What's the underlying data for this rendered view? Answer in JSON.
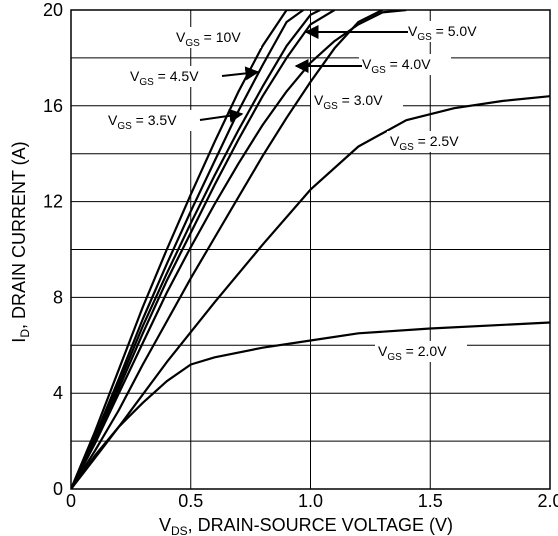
{
  "chart_data": {
    "type": "line",
    "xlabel_main": "V",
    "xlabel_sub": "DS",
    "xlabel_rest": ", DRAIN-SOURCE VOLTAGE (V)",
    "ylabel_main": "I",
    "ylabel_sub": "D",
    "ylabel_rest": ", DRAIN CURRENT (A)",
    "xlim": [
      0,
      2.0
    ],
    "ylim": [
      0,
      20
    ],
    "x_ticks": [
      "0",
      "0.5",
      "1.0",
      "1.5",
      "2.0"
    ],
    "y_ticks": [
      "0",
      "4",
      "8",
      "12",
      "16",
      "20"
    ],
    "grid": true,
    "series": [
      {
        "label_main": "V",
        "label_sub": "GS",
        "label_rest": " = 10V",
        "x": [
          0,
          0.1,
          0.2,
          0.3,
          0.4,
          0.5,
          0.6,
          0.7,
          0.8,
          0.9,
          0.95
        ],
        "y": [
          0,
          2.4,
          5.0,
          7.6,
          10.0,
          12.3,
          14.5,
          16.6,
          18.5,
          20.0,
          20.0
        ]
      },
      {
        "label_main": "V",
        "label_sub": "GS",
        "label_rest": " = 5.0V",
        "x": [
          0,
          0.1,
          0.2,
          0.3,
          0.4,
          0.5,
          0.6,
          0.7,
          0.8,
          0.9,
          0.97
        ],
        "y": [
          0,
          2.2,
          4.6,
          7.1,
          9.4,
          11.6,
          13.7,
          15.8,
          17.7,
          19.5,
          20.0
        ]
      },
      {
        "label_main": "V",
        "label_sub": "GS",
        "label_rest": " = 4.5V",
        "x": [
          0,
          0.1,
          0.2,
          0.3,
          0.4,
          0.5,
          0.6,
          0.7,
          0.8,
          0.9,
          1.0,
          1.04
        ],
        "y": [
          0,
          2.1,
          4.4,
          6.8,
          9.0,
          11.1,
          13.1,
          15.0,
          16.8,
          18.5,
          19.8,
          20.0
        ]
      },
      {
        "label_main": "V",
        "label_sub": "GS",
        "label_rest": " = 4.0V",
        "x": [
          0,
          0.1,
          0.2,
          0.3,
          0.4,
          0.5,
          0.6,
          0.7,
          0.8,
          0.9,
          1.0,
          1.1
        ],
        "y": [
          0,
          2.0,
          4.2,
          6.5,
          8.7,
          10.7,
          12.7,
          14.6,
          16.4,
          18.0,
          19.4,
          20.0
        ]
      },
      {
        "label_main": "V",
        "label_sub": "GS",
        "label_rest": " = 3.5V",
        "x": [
          0,
          0.1,
          0.2,
          0.3,
          0.4,
          0.5,
          0.6,
          0.7,
          0.8,
          0.9,
          1.0,
          1.1,
          1.2,
          1.3,
          1.4
        ],
        "y": [
          0,
          1.9,
          4.0,
          6.1,
          8.2,
          10.1,
          11.9,
          13.6,
          15.2,
          16.6,
          17.8,
          18.7,
          19.4,
          19.9,
          20.0
        ]
      },
      {
        "label_main": "V",
        "label_sub": "GS",
        "label_rest": " = 3.0V",
        "x": [
          0,
          0.1,
          0.2,
          0.3,
          0.4,
          0.5,
          0.6,
          0.7,
          0.8,
          0.9,
          1.0,
          1.1,
          1.2,
          1.3
        ],
        "y": [
          0,
          1.6,
          3.3,
          5.2,
          7.0,
          8.8,
          10.5,
          12.2,
          13.9,
          15.5,
          17.0,
          18.4,
          19.5,
          20.0
        ]
      },
      {
        "label_main": "V",
        "label_sub": "GS",
        "label_rest": " = 2.5V",
        "x": [
          0,
          0.1,
          0.2,
          0.4,
          0.6,
          0.8,
          1.0,
          1.2,
          1.4,
          1.6,
          1.8,
          2.0
        ],
        "y": [
          0,
          1.3,
          2.6,
          5.3,
          7.8,
          10.2,
          12.5,
          14.3,
          15.4,
          15.9,
          16.2,
          16.4
        ]
      },
      {
        "label_main": "V",
        "label_sub": "GS",
        "label_rest": " = 2.0V",
        "x": [
          0,
          0.1,
          0.2,
          0.3,
          0.4,
          0.5,
          0.6,
          0.8,
          1.0,
          1.2,
          1.5,
          2.0
        ],
        "y": [
          0,
          1.4,
          2.6,
          3.6,
          4.5,
          5.2,
          5.5,
          5.9,
          6.2,
          6.5,
          6.7,
          6.95
        ]
      }
    ]
  }
}
